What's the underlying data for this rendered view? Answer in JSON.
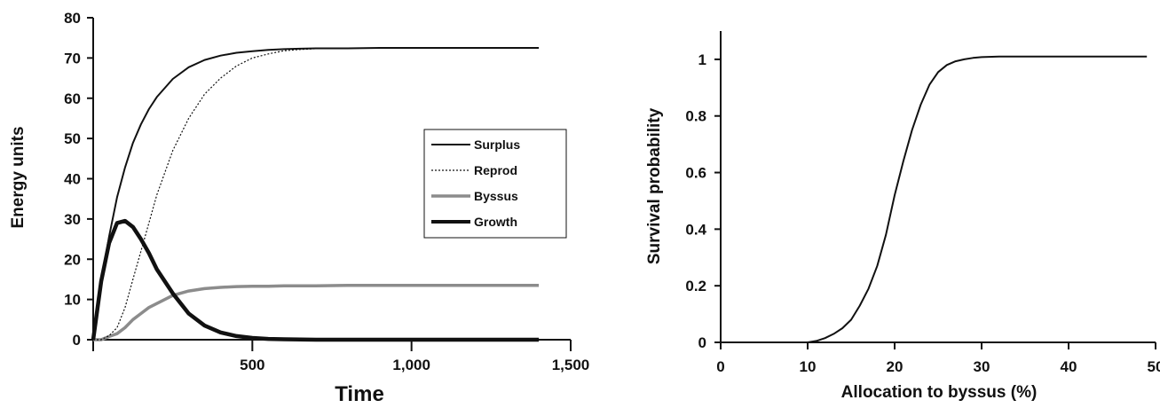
{
  "chart_data": [
    {
      "type": "line",
      "xlabel": "Time",
      "ylabel": "Energy units",
      "xlim": [
        0,
        1500
      ],
      "ylim": [
        0,
        80
      ],
      "xticks": [
        500,
        1000,
        1500
      ],
      "xtick_labels": [
        "500",
        "1,000",
        "1,500"
      ],
      "yticks": [
        0,
        10,
        20,
        30,
        40,
        50,
        60,
        70,
        80
      ],
      "ytick_labels": [
        "0",
        "10",
        "20",
        "30",
        "40",
        "50",
        "60",
        "70",
        "80"
      ],
      "legend_position": "right",
      "grid": false,
      "x": [
        0,
        25,
        50,
        75,
        100,
        125,
        150,
        175,
        200,
        250,
        300,
        350,
        400,
        450,
        500,
        550,
        600,
        650,
        700,
        800,
        900,
        1000,
        1100,
        1200,
        1300,
        1400
      ],
      "series": [
        {
          "name": "Surplus",
          "color": "#111111",
          "style": "solid",
          "width": 2,
          "values": [
            0,
            14.5,
            25.6,
            35.4,
            42.8,
            48.9,
            53.5,
            57.3,
            60.3,
            64.8,
            67.7,
            69.5,
            70.6,
            71.3,
            71.7,
            72.0,
            72.2,
            72.3,
            72.4,
            72.4,
            72.5,
            72.5,
            72.5,
            72.5,
            72.5,
            72.5
          ]
        },
        {
          "name": "Reprod",
          "color": "#111111",
          "style": "dotted",
          "width": 1.2,
          "values": [
            0,
            0,
            1.0,
            3.0,
            8.0,
            15.0,
            22.0,
            29.0,
            36.0,
            47.0,
            55.0,
            61.0,
            65.0,
            68.0,
            70.0,
            71.0,
            71.8,
            72.1,
            72.3,
            72.4,
            72.5,
            72.5,
            72.5,
            72.5,
            72.5,
            72.5
          ]
        },
        {
          "name": "Byssus",
          "color": "#8c8c8c",
          "style": "solid",
          "width": 3.5,
          "values": [
            0,
            0,
            0.8,
            1.5,
            3.0,
            5.0,
            6.5,
            8.0,
            9.0,
            11.0,
            12.1,
            12.7,
            13.0,
            13.2,
            13.3,
            13.3,
            13.4,
            13.4,
            13.4,
            13.5,
            13.5,
            13.5,
            13.5,
            13.5,
            13.5,
            13.5
          ]
        },
        {
          "name": "Growth",
          "color": "#111111",
          "style": "solid",
          "width": 4.5,
          "values": [
            0,
            14.5,
            24.0,
            29.0,
            29.5,
            28.0,
            25.0,
            21.5,
            17.5,
            11.5,
            6.5,
            3.5,
            1.8,
            0.9,
            0.45,
            0.2,
            0.1,
            0.05,
            0,
            0,
            0,
            0,
            0,
            0,
            0,
            0
          ]
        }
      ]
    },
    {
      "type": "line",
      "xlabel": "Allocation to byssus (%)",
      "ylabel": "Survival probability",
      "xlim": [
        0,
        50
      ],
      "ylim": [
        0,
        1.1
      ],
      "xticks": [
        0,
        10,
        20,
        30,
        40,
        50
      ],
      "xtick_labels": [
        "0",
        "10",
        "20",
        "30",
        "40",
        "50"
      ],
      "yticks": [
        0,
        0.2,
        0.4,
        0.6,
        0.8,
        1.0
      ],
      "ytick_labels": [
        "0",
        "0.2",
        "0.4",
        "0.6",
        "0.8",
        "1"
      ],
      "grid": false,
      "x": [
        10,
        11,
        12,
        13,
        14,
        15,
        16,
        17,
        18,
        19,
        20,
        21,
        22,
        23,
        24,
        25,
        26,
        27,
        28,
        29,
        30,
        32,
        35,
        40,
        45,
        49
      ],
      "series": [
        {
          "color": "#111111",
          "style": "solid",
          "width": 2,
          "values": [
            0,
            0.005,
            0.015,
            0.03,
            0.05,
            0.08,
            0.13,
            0.19,
            0.27,
            0.38,
            0.52,
            0.64,
            0.75,
            0.84,
            0.91,
            0.955,
            0.98,
            0.993,
            1.0,
            1.005,
            1.008,
            1.01,
            1.01,
            1.01,
            1.01,
            1.01
          ]
        }
      ]
    }
  ]
}
